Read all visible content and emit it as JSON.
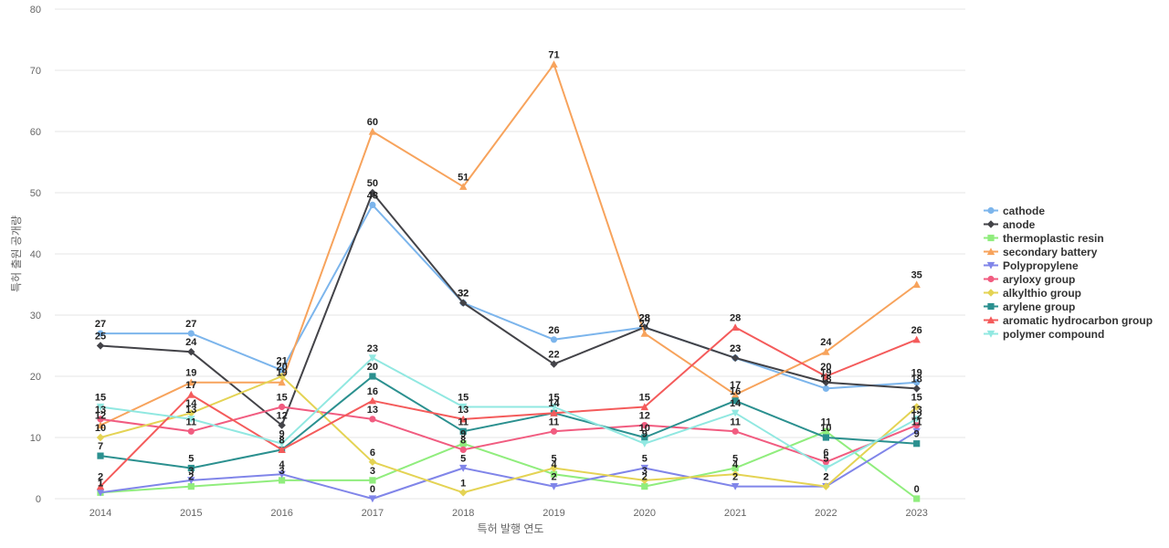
{
  "chart_data": {
    "type": "line",
    "title": "",
    "xlabel": "특허 발행 연도",
    "ylabel": "특허 출원 공개량",
    "ylim": [
      0,
      80
    ],
    "yticks": [
      0,
      10,
      20,
      30,
      40,
      50,
      60,
      70,
      80
    ],
    "categories": [
      "2014",
      "2015",
      "2016",
      "2017",
      "2018",
      "2019",
      "2020",
      "2021",
      "2022",
      "2023"
    ],
    "grid": true,
    "legend_position": "right",
    "series": [
      {
        "name": "cathode",
        "color": "#7cb5ec",
        "marker": "circle",
        "values": [
          27,
          27,
          21,
          48,
          32,
          26,
          28,
          23,
          18,
          19
        ]
      },
      {
        "name": "anode",
        "color": "#434348",
        "marker": "diamond",
        "values": [
          25,
          24,
          12,
          50,
          32,
          22,
          28,
          23,
          19,
          18
        ]
      },
      {
        "name": "thermoplastic resin",
        "color": "#90ed7d",
        "marker": "square",
        "values": [
          1,
          2,
          3,
          3,
          9,
          4,
          2,
          5,
          11,
          0
        ]
      },
      {
        "name": "secondary battery",
        "color": "#f7a35c",
        "marker": "triangle",
        "values": [
          12,
          19,
          19,
          60,
          51,
          71,
          27,
          17,
          24,
          35
        ]
      },
      {
        "name": "Polypropylene",
        "color": "#8085e9",
        "marker": "triangle-down",
        "values": [
          1,
          3,
          4,
          0,
          5,
          2,
          5,
          2,
          2,
          11
        ]
      },
      {
        "name": "aryloxy group",
        "color": "#f15c80",
        "marker": "circle",
        "values": [
          13,
          11,
          15,
          13,
          8,
          11,
          12,
          11,
          6,
          12
        ]
      },
      {
        "name": "alkylthio group",
        "color": "#e4d354",
        "marker": "diamond",
        "values": [
          10,
          14,
          20,
          6,
          1,
          5,
          3,
          4,
          2,
          15
        ]
      },
      {
        "name": "arylene group",
        "color": "#2b908f",
        "marker": "square",
        "values": [
          7,
          5,
          8,
          20,
          11,
          14,
          10,
          16,
          10,
          9
        ]
      },
      {
        "name": "aromatic hydrocarbon group",
        "color": "#f45b5b",
        "marker": "triangle",
        "values": [
          2,
          17,
          8,
          16,
          13,
          14,
          15,
          28,
          20,
          26
        ]
      },
      {
        "name": "polymer compound",
        "color": "#91e8e1",
        "marker": "triangle-down",
        "values": [
          15,
          13,
          9,
          23,
          15,
          15,
          9,
          14,
          5,
          13
        ]
      }
    ]
  }
}
